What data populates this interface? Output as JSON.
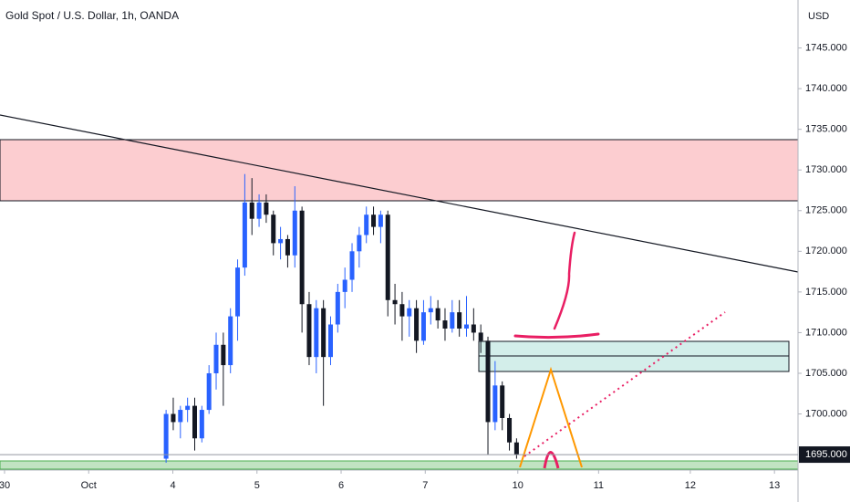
{
  "chart_data": {
    "type": "candlestick",
    "title": "Gold Spot / U.S. Dollar, 1h, OANDA",
    "y_unit": "USD",
    "up_color": "#2962ff",
    "down_color": "#131722",
    "x": [
      1.92,
      2.005,
      2.09,
      2.175,
      2.26,
      2.345,
      2.43,
      2.515,
      2.6,
      2.685,
      2.77,
      2.855,
      2.94,
      3.025,
      3.11,
      3.195,
      3.28,
      3.365,
      3.45,
      3.535,
      3.62,
      3.705,
      3.79,
      3.875,
      3.96,
      4.045,
      4.13,
      4.215,
      4.3,
      4.385,
      4.47,
      4.555,
      4.64,
      4.725,
      4.81,
      4.895,
      4.98,
      5.065,
      5.15,
      5.235,
      5.32,
      5.405,
      5.49,
      5.575,
      5.66,
      5.745,
      5.83,
      5.915,
      6.0,
      6.085
    ],
    "open": [
      1694.5,
      1700,
      1699,
      1700.5,
      1701,
      1697,
      1700.5,
      1705,
      1708.5,
      1706,
      1712,
      1718,
      1726,
      1724,
      1726,
      1724.5,
      1721,
      1721.5,
      1719.5,
      1725,
      1713.5,
      1707,
      1713,
      1707,
      1711,
      1715,
      1716.5,
      1720,
      1722,
      1724.5,
      1723,
      1724.5,
      1714,
      1713.5,
      1712,
      1713,
      1709,
      1712.5,
      1713,
      1711.5,
      1710.5,
      1712.5,
      1710.5,
      1711,
      1710,
      1709,
      1699,
      1703.5,
      1699.5,
      1696.5
    ],
    "high": [
      1700.5,
      1702,
      1701,
      1702,
      1702,
      1701,
      1706,
      1710,
      1710,
      1713,
      1719,
      1729.5,
      1729,
      1727,
      1727,
      1725,
      1723,
      1722,
      1728,
      1725.5,
      1715,
      1714,
      1714,
      1712,
      1716,
      1718,
      1721,
      1723,
      1725.5,
      1725.5,
      1725,
      1725,
      1716,
      1715,
      1714,
      1714,
      1714,
      1714.5,
      1714,
      1713,
      1714,
      1714,
      1714.5,
      1713,
      1711,
      1709.5,
      1706.5,
      1704,
      1700,
      1697
    ],
    "low": [
      1694,
      1698,
      1697,
      1699,
      1695.5,
      1696.5,
      1700,
      1703,
      1701,
      1705,
      1709,
      1717,
      1722,
      1723,
      1723.5,
      1719.5,
      1719,
      1718,
      1718,
      1710,
      1706,
      1705,
      1701,
      1706,
      1710,
      1713,
      1715,
      1718,
      1721,
      1722,
      1721,
      1712,
      1711,
      1709,
      1709.5,
      1707.5,
      1708.5,
      1711,
      1710.5,
      1709,
      1710,
      1709.5,
      1709.5,
      1709,
      1707.5,
      1695,
      1698,
      1698,
      1695.5,
      1694.5
    ],
    "close": [
      1700,
      1699,
      1700.5,
      1701,
      1697,
      1700.5,
      1705,
      1708.5,
      1706,
      1712,
      1718,
      1726,
      1724,
      1726,
      1724.5,
      1721,
      1721.5,
      1719.5,
      1725,
      1713.5,
      1707,
      1713,
      1707,
      1711,
      1715,
      1716.5,
      1720,
      1722,
      1724.5,
      1723,
      1724.5,
      1714,
      1713.5,
      1712,
      1713,
      1709,
      1712.5,
      1713,
      1711.5,
      1710.5,
      1712.5,
      1710.5,
      1711,
      1710,
      1709,
      1699,
      1703.5,
      1699.5,
      1696.5,
      1695
    ],
    "xlim": [
      -0.054,
      9.43
    ],
    "xticks": [
      {
        "value": 0,
        "label": "30"
      },
      {
        "value": 1,
        "label": "Oct"
      },
      {
        "value": 2,
        "label": "4"
      },
      {
        "value": 3,
        "label": "5"
      },
      {
        "value": 4,
        "label": "6"
      },
      {
        "value": 5,
        "label": "7"
      },
      {
        "value": 6.1,
        "label": "10"
      },
      {
        "value": 7.06,
        "label": "11"
      },
      {
        "value": 8.15,
        "label": "12"
      },
      {
        "value": 9.15,
        "label": "13"
      }
    ],
    "ylim": [
      1693.1,
      1750.9
    ],
    "yticks": [
      {
        "value": 1700,
        "label": "1700.000"
      },
      {
        "value": 1705,
        "label": "1705.000"
      },
      {
        "value": 1710,
        "label": "1710.000"
      },
      {
        "value": 1715,
        "label": "1715.000"
      },
      {
        "value": 1720,
        "label": "1720.000"
      },
      {
        "value": 1725,
        "label": "1725.000"
      },
      {
        "value": 1730,
        "label": "1730.000"
      },
      {
        "value": 1735,
        "label": "1735.000"
      },
      {
        "value": 1740,
        "label": "1740.000"
      },
      {
        "value": 1745,
        "label": "1745.000"
      }
    ],
    "last_price": {
      "value": 1695,
      "label": "1695.000"
    }
  }
}
